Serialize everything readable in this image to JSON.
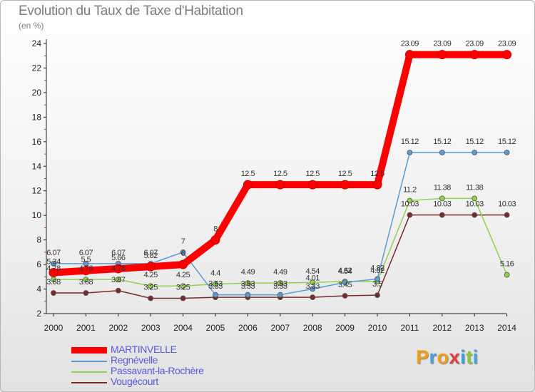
{
  "header": {
    "title": "Evolution du Taux de Taxe d'Habitation",
    "subtitle": "(en %)"
  },
  "logo": {
    "letters": [
      "P",
      "r",
      "o",
      "x",
      "i",
      "t",
      "i"
    ],
    "colors": [
      "#f0a012",
      "#4aa0d8",
      "#f0a012",
      "#e63c3c",
      "#3aa0d8",
      "#8cc83c",
      "#4aa0d8"
    ]
  },
  "chart_data": {
    "type": "line",
    "x": [
      "2000",
      "2001",
      "2002",
      "2003",
      "2004",
      "2005",
      "2006",
      "2007",
      "2008",
      "2009",
      "2010",
      "2011",
      "2012",
      "2013",
      "2014"
    ],
    "ylim": [
      2,
      24
    ],
    "yticks": [
      2,
      4,
      6,
      8,
      10,
      12,
      14,
      16,
      18,
      20,
      22,
      24
    ],
    "grid": false,
    "legend_position": "bottom-left",
    "series": [
      {
        "name": "MARTINVELLE",
        "color": "#ff0000",
        "bold": true,
        "values": [
          5.34,
          5.5,
          5.66,
          5.82,
          6.0,
          8.0,
          12.5,
          12.5,
          12.5,
          12.5,
          12.5,
          23.09,
          23.09,
          23.09,
          23.09
        ],
        "labels": [
          "5.34",
          "5.5",
          "5.66",
          "5.82",
          "6",
          "8",
          "12.5",
          "12.5",
          "12.5",
          "12.5",
          "12.5",
          "23.09",
          "23.09",
          "23.09",
          "23.09"
        ]
      },
      {
        "name": "Regnévelle",
        "color": "#5b9bd5",
        "values": [
          6.07,
          6.07,
          6.07,
          6.07,
          7.0,
          3.53,
          3.53,
          3.53,
          4.01,
          4.54,
          4.82,
          15.12,
          15.12,
          15.12,
          15.12
        ],
        "labels": [
          "6.07",
          "6.07",
          "6.07",
          "6.07",
          "7",
          "3.53",
          "3.53",
          "3.53",
          "4.01",
          "4.54",
          "4.82",
          "15.12",
          "15.12",
          "15.12",
          "15.12"
        ]
      },
      {
        "name": "Passavant-la-Rochère",
        "color": "#8fd44a",
        "values": [
          4.78,
          4.78,
          4.78,
          4.25,
          4.25,
          4.4,
          4.49,
          4.49,
          4.54,
          4.62,
          4.62,
          11.2,
          11.38,
          11.38,
          5.16
        ],
        "labels": [
          "4.78",
          "4.78",
          "4.78",
          "4.25",
          "4.25",
          "4.4",
          "4.49",
          "4.49",
          "4.54",
          "4.62",
          "4.62",
          "11.2",
          "11.38",
          "11.38",
          "5.16"
        ]
      },
      {
        "name": "Vougécourt",
        "color": "#7a2a2a",
        "values": [
          3.68,
          3.68,
          3.87,
          3.25,
          3.25,
          3.33,
          3.33,
          3.33,
          3.33,
          3.45,
          3.5,
          10.03,
          10.03,
          10.03,
          10.03
        ],
        "labels": [
          "3.68",
          "3.68",
          "3.87",
          "3.25",
          "3.25",
          "3.33",
          "3.33",
          "3.33",
          "3.33",
          "3.45",
          "3.5",
          "10.03",
          "10.03",
          "10.03",
          "10.03"
        ]
      }
    ]
  }
}
